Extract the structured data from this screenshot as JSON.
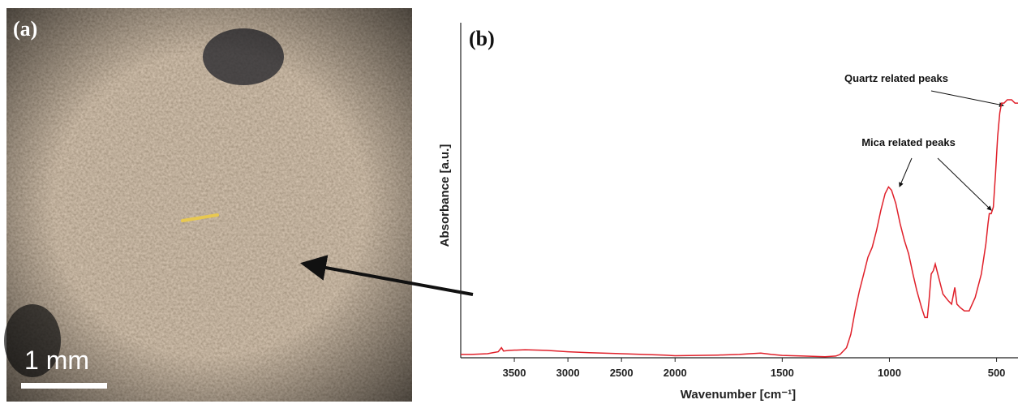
{
  "panel_a": {
    "label": "(a)",
    "scale_bar_label": "1 mm"
  },
  "chart_data": {
    "type": "line",
    "panel_label": "(b)",
    "xlabel": "Wavenumber [cm⁻¹]",
    "ylabel": "Absorbance [a.u.]",
    "annotations": [
      "Quartz related peaks",
      "Mica related peaks"
    ],
    "color": "#e0202a",
    "x_expansion": {
      "below": 2000,
      "factor": 2
    },
    "xlim": [
      4000,
      400
    ],
    "ylim": [
      0,
      1
    ],
    "xticks": [
      3500,
      3000,
      2500,
      2000,
      1500,
      1000,
      500
    ],
    "x": [
      4000,
      3900,
      3750,
      3700,
      3650,
      3620,
      3600,
      3550,
      3400,
      3200,
      3000,
      2800,
      2500,
      2300,
      2100,
      2000,
      1900,
      1800,
      1700,
      1650,
      1600,
      1550,
      1500,
      1400,
      1300,
      1250,
      1230,
      1200,
      1180,
      1160,
      1140,
      1120,
      1100,
      1080,
      1060,
      1040,
      1020,
      1004,
      990,
      970,
      950,
      930,
      910,
      890,
      872,
      850,
      835,
      823,
      815,
      805,
      795,
      786,
      770,
      750,
      725,
      710,
      695,
      685,
      670,
      650,
      628,
      600,
      571,
      550,
      540,
      534,
      525,
      515,
      505,
      495,
      485,
      477,
      465,
      450,
      430,
      414,
      400
    ],
    "values": [
      0.01,
      0.01,
      0.012,
      0.015,
      0.018,
      0.03,
      0.02,
      0.022,
      0.024,
      0.022,
      0.018,
      0.015,
      0.012,
      0.01,
      0.008,
      0.006,
      0.007,
      0.008,
      0.01,
      0.012,
      0.014,
      0.01,
      0.007,
      0.005,
      0.003,
      0.005,
      0.01,
      0.03,
      0.07,
      0.14,
      0.2,
      0.25,
      0.3,
      0.33,
      0.38,
      0.44,
      0.49,
      0.51,
      0.5,
      0.46,
      0.4,
      0.35,
      0.31,
      0.25,
      0.2,
      0.15,
      0.12,
      0.12,
      0.17,
      0.25,
      0.26,
      0.28,
      0.24,
      0.19,
      0.17,
      0.16,
      0.21,
      0.16,
      0.15,
      0.14,
      0.14,
      0.18,
      0.25,
      0.34,
      0.4,
      0.43,
      0.43,
      0.45,
      0.55,
      0.66,
      0.73,
      0.76,
      0.76,
      0.77,
      0.77,
      0.76,
      0.76
    ]
  }
}
